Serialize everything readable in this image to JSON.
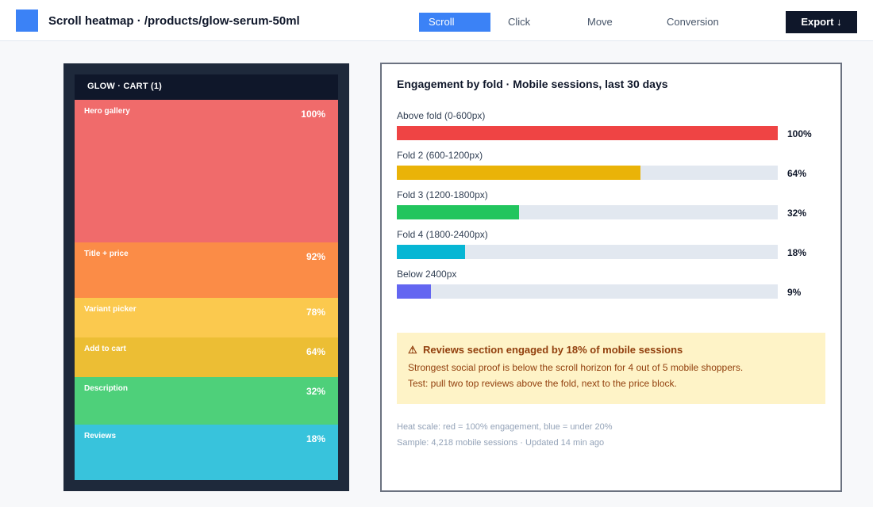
{
  "header": {
    "title": "Scroll heatmap · /products/glow-serum-50ml",
    "tabs": [
      {
        "label": "Scroll",
        "active": true
      },
      {
        "label": "Click",
        "active": false
      },
      {
        "label": "Move",
        "active": false
      },
      {
        "label": "Conversion",
        "active": false
      }
    ],
    "export_label": "Export ↓",
    "accent": "#3b82f6"
  },
  "phone": {
    "header_text": "GLOW · CART (1)",
    "sections": [
      {
        "label": "Hero gallery",
        "pct": "100%",
        "color": "#f06b6b"
      },
      {
        "label": "Title + price",
        "pct": "92%",
        "color": "#fb8c47"
      },
      {
        "label": "Variant picker",
        "pct": "78%",
        "color": "#fbc94e"
      },
      {
        "label": "Add to cart",
        "pct": "64%",
        "color": "#ecbe34"
      },
      {
        "label": "Description",
        "pct": "32%",
        "color": "#4ed07a"
      },
      {
        "label": "Reviews",
        "pct": "18%",
        "color": "#38c3dc"
      }
    ]
  },
  "panel": {
    "title": "Engagement by fold · Mobile sessions, last 30 days",
    "folds": [
      {
        "label": "Above fold (0-600px)",
        "value": 100,
        "pct": "100%",
        "color": "#ef4444"
      },
      {
        "label": "Fold 2 (600-1200px)",
        "value": 64,
        "pct": "64%",
        "color": "#eab308"
      },
      {
        "label": "Fold 3 (1200-1800px)",
        "value": 32,
        "pct": "32%",
        "color": "#22c55e"
      },
      {
        "label": "Fold 4 (1800-2400px)",
        "value": 18,
        "pct": "18%",
        "color": "#06b6d4"
      },
      {
        "label": "Below 2400px",
        "value": 9,
        "pct": "9%",
        "color": "#6366f1"
      }
    ],
    "alert": {
      "icon": "⚠",
      "title": "Reviews section engaged by 18% of mobile sessions",
      "line1": "Strongest social proof is below the scroll horizon for 4 out of 5 mobile shoppers.",
      "line2": "Test: pull two top reviews above the fold, next to the price block."
    },
    "footer": {
      "scale": "Heat scale: red = 100% engagement, blue = under 20%",
      "sample": "Sample: 4,218 mobile sessions · Updated 14 min ago"
    }
  }
}
